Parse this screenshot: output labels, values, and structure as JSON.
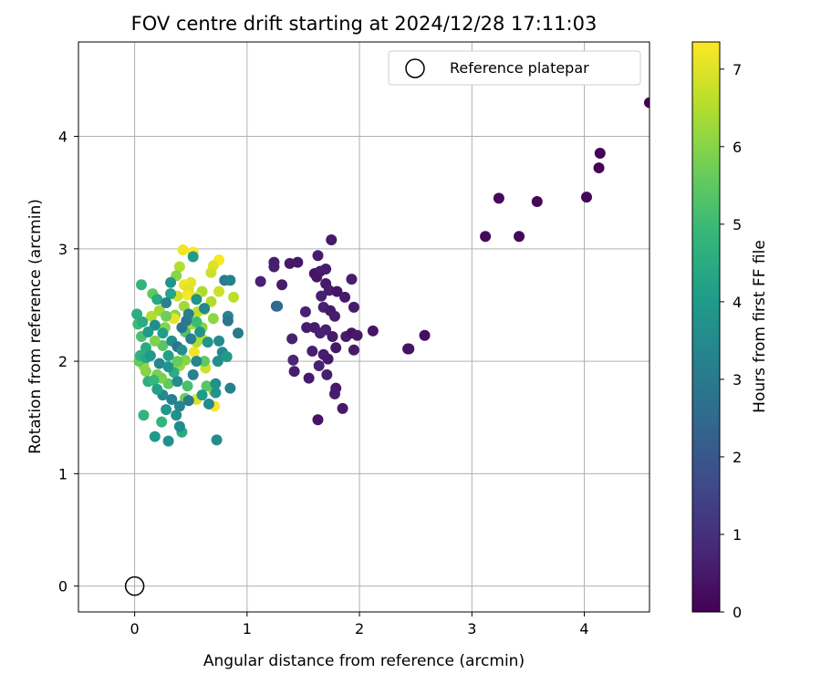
{
  "chart_data": {
    "type": "scatter",
    "title": "FOV centre drift starting at 2024/12/28 17:11:03",
    "xlabel": "Angular distance from reference (arcmin)",
    "ylabel": "Rotation from reference (arcmin)",
    "xlim": [
      -0.5,
      4.58
    ],
    "ylim": [
      -0.23,
      4.84
    ],
    "xticks": [
      0,
      1,
      2,
      3,
      4
    ],
    "yticks": [
      0,
      1,
      2,
      3,
      4
    ],
    "grid": true,
    "legend": {
      "placement": "top-right",
      "entries": [
        "Reference platepar"
      ]
    },
    "reference_point": {
      "name": "Reference platepar",
      "x": 0,
      "y": 0,
      "marker": "open-circle"
    },
    "colorbar": {
      "label": "Hours from first FF file",
      "range": [
        0,
        7.35
      ],
      "ticks": [
        0,
        1,
        2,
        3,
        4,
        5,
        6,
        7
      ],
      "colormap": "viridis"
    },
    "series": [
      {
        "points": [
          [
            4.58,
            4.3,
            0.0
          ],
          [
            4.14,
            3.85,
            0.05
          ],
          [
            4.13,
            3.72,
            0.08
          ],
          [
            4.02,
            3.46,
            0.1
          ],
          [
            3.58,
            3.42,
            0.12
          ],
          [
            3.24,
            3.45,
            0.15
          ],
          [
            3.12,
            3.11,
            0.18
          ],
          [
            3.42,
            3.11,
            0.16
          ],
          [
            2.58,
            2.23,
            0.3
          ],
          [
            2.43,
            2.11,
            0.35
          ],
          [
            2.44,
            2.11,
            0.36
          ],
          [
            2.12,
            2.27,
            0.4
          ],
          [
            1.75,
            3.08,
            0.5
          ],
          [
            1.63,
            2.94,
            0.55
          ],
          [
            1.24,
            2.88,
            0.6
          ],
          [
            1.24,
            2.84,
            0.62
          ],
          [
            1.38,
            2.87,
            0.5
          ],
          [
            1.45,
            2.88,
            0.45
          ],
          [
            1.12,
            2.71,
            0.7
          ],
          [
            1.31,
            2.68,
            0.6
          ],
          [
            1.6,
            2.78,
            0.4
          ],
          [
            1.65,
            2.8,
            0.5
          ],
          [
            1.7,
            2.82,
            0.55
          ],
          [
            1.62,
            2.75,
            0.45
          ],
          [
            1.7,
            2.69,
            0.5
          ],
          [
            1.73,
            2.63,
            0.6
          ],
          [
            1.66,
            2.58,
            0.65
          ],
          [
            1.8,
            2.62,
            0.4
          ],
          [
            1.87,
            2.57,
            0.5
          ],
          [
            1.93,
            2.73,
            0.6
          ],
          [
            1.68,
            2.48,
            0.7
          ],
          [
            1.74,
            2.45,
            0.5
          ],
          [
            1.78,
            2.4,
            0.6
          ],
          [
            1.95,
            2.48,
            0.55
          ],
          [
            1.52,
            2.44,
            0.7
          ],
          [
            1.6,
            2.3,
            0.6
          ],
          [
            1.7,
            2.28,
            0.65
          ],
          [
            1.53,
            2.3,
            0.55
          ],
          [
            1.65,
            2.25,
            0.7
          ],
          [
            1.76,
            2.22,
            0.5
          ],
          [
            1.88,
            2.22,
            0.6
          ],
          [
            1.93,
            2.25,
            0.4
          ],
          [
            1.98,
            2.23,
            0.5
          ],
          [
            1.4,
            2.2,
            0.7
          ],
          [
            1.58,
            2.09,
            0.65
          ],
          [
            1.79,
            2.12,
            0.45
          ],
          [
            1.95,
            2.1,
            0.55
          ],
          [
            1.68,
            2.06,
            0.6
          ],
          [
            1.72,
            2.02,
            0.5
          ],
          [
            1.41,
            2.01,
            0.8
          ],
          [
            1.64,
            1.96,
            0.7
          ],
          [
            1.42,
            1.91,
            0.6
          ],
          [
            1.55,
            1.85,
            0.5
          ],
          [
            1.71,
            1.88,
            0.6
          ],
          [
            1.79,
            1.76,
            0.5
          ],
          [
            1.78,
            1.71,
            0.6
          ],
          [
            1.85,
            1.58,
            0.5
          ],
          [
            1.63,
            1.48,
            0.4
          ],
          [
            1.26,
            2.49,
            2.0
          ],
          [
            1.27,
            2.49,
            2.5
          ],
          [
            0.52,
            2.97,
            7.3
          ],
          [
            0.43,
            2.99,
            7.2
          ],
          [
            0.75,
            2.9,
            7.3
          ],
          [
            0.7,
            2.85,
            7.0
          ],
          [
            0.4,
            2.84,
            6.5
          ],
          [
            0.68,
            2.79,
            6.8
          ],
          [
            0.37,
            2.76,
            6.0
          ],
          [
            0.5,
            2.7,
            7.1
          ],
          [
            0.44,
            2.68,
            7.2
          ],
          [
            0.48,
            2.64,
            7.0
          ],
          [
            0.6,
            2.62,
            6.4
          ],
          [
            0.75,
            2.62,
            6.8
          ],
          [
            0.47,
            2.59,
            7.3
          ],
          [
            0.55,
            2.57,
            7.0
          ],
          [
            0.38,
            2.58,
            6.8
          ],
          [
            0.68,
            2.53,
            6.5
          ],
          [
            0.88,
            2.57,
            6.6
          ],
          [
            0.44,
            2.49,
            6.3
          ],
          [
            0.62,
            2.46,
            6.2
          ],
          [
            0.56,
            2.44,
            6.6
          ],
          [
            0.36,
            2.41,
            6.0
          ],
          [
            0.7,
            2.38,
            6.1
          ],
          [
            0.51,
            2.33,
            6.4
          ],
          [
            0.35,
            2.38,
            7.1
          ],
          [
            0.27,
            2.3,
            6.0
          ],
          [
            0.22,
            2.45,
            6.3
          ],
          [
            0.15,
            2.4,
            6.5
          ],
          [
            0.6,
            2.3,
            6.0
          ],
          [
            0.6,
            2.2,
            6.7
          ],
          [
            0.55,
            2.17,
            6.5
          ],
          [
            0.53,
            2.08,
            7.2
          ],
          [
            0.45,
            2.01,
            6.0
          ],
          [
            0.63,
            1.94,
            6.8
          ],
          [
            0.4,
            1.96,
            6.2
          ],
          [
            0.7,
            1.74,
            6.7
          ],
          [
            0.55,
            1.66,
            7.0
          ],
          [
            0.71,
            1.6,
            7.3
          ],
          [
            0.08,
            1.96,
            6.2
          ],
          [
            0.1,
            1.91,
            6.0
          ],
          [
            0.2,
            1.88,
            5.8
          ],
          [
            0.04,
            2.0,
            5.6
          ],
          [
            0.06,
            2.22,
            5.2
          ],
          [
            0.03,
            2.33,
            5.0
          ],
          [
            0.16,
            2.6,
            5.5
          ],
          [
            0.28,
            2.4,
            5.7
          ],
          [
            0.25,
            2.14,
            5.4
          ],
          [
            0.18,
            2.18,
            5.9
          ],
          [
            0.45,
            2.26,
            5.3
          ],
          [
            0.38,
            2.0,
            5.6
          ],
          [
            0.3,
            1.8,
            5.5
          ],
          [
            0.24,
            1.85,
            5.8
          ],
          [
            0.47,
            1.78,
            5.2
          ],
          [
            0.45,
            1.67,
            5.7
          ],
          [
            0.64,
            1.78,
            5.4
          ],
          [
            0.55,
            2.35,
            5.0
          ],
          [
            0.62,
            2.0,
            5.5
          ],
          [
            0.08,
            1.52,
            4.8
          ],
          [
            0.06,
            2.68,
            4.8
          ],
          [
            0.07,
            2.35,
            4.5
          ],
          [
            0.02,
            2.42,
            4.6
          ],
          [
            0.1,
            2.12,
            4.5
          ],
          [
            0.05,
            2.05,
            4.7
          ],
          [
            0.12,
            1.82,
            4.6
          ],
          [
            0.17,
            1.83,
            4.9
          ],
          [
            0.1,
            2.03,
            4.4
          ],
          [
            0.3,
            2.05,
            4.2
          ],
          [
            0.35,
            1.9,
            4.6
          ],
          [
            0.2,
            2.55,
            4.4
          ],
          [
            0.32,
            2.6,
            4.3
          ],
          [
            0.32,
            2.7,
            3.8
          ],
          [
            0.52,
            2.93,
            4.0
          ],
          [
            0.24,
            1.46,
            4.8
          ],
          [
            0.42,
            1.37,
            4.5
          ],
          [
            0.18,
            1.33,
            4.0
          ],
          [
            0.3,
            1.29,
            3.7
          ],
          [
            0.4,
            1.42,
            3.5
          ],
          [
            0.73,
            1.3,
            3.6
          ],
          [
            0.8,
            2.72,
            3.0
          ],
          [
            0.85,
            2.72,
            3.2
          ],
          [
            0.83,
            2.4,
            3.4
          ],
          [
            0.83,
            2.36,
            2.9
          ],
          [
            0.92,
            2.25,
            3.0
          ],
          [
            0.75,
            2.18,
            3.5
          ],
          [
            0.65,
            2.17,
            3.8
          ],
          [
            0.78,
            2.08,
            3.5
          ],
          [
            0.82,
            2.04,
            4.0
          ],
          [
            0.74,
            2.0,
            3.6
          ],
          [
            0.72,
            1.8,
            3.7
          ],
          [
            0.85,
            1.76,
            3.2
          ],
          [
            0.72,
            1.72,
            3.8
          ],
          [
            0.6,
            1.7,
            4.0
          ],
          [
            0.66,
            1.62,
            3.5
          ],
          [
            0.4,
            1.6,
            3.3
          ],
          [
            0.37,
            1.52,
            3.7
          ],
          [
            0.28,
            1.57,
            3.9
          ],
          [
            0.33,
            1.66,
            3.2
          ],
          [
            0.25,
            1.7,
            3.5
          ],
          [
            0.48,
            1.65,
            3.0
          ],
          [
            0.22,
            1.98,
            3.4
          ],
          [
            0.33,
            2.18,
            3.6
          ],
          [
            0.42,
            2.3,
            2.9
          ],
          [
            0.48,
            2.42,
            3.2
          ],
          [
            0.55,
            2.55,
            3.8
          ],
          [
            0.62,
            2.47,
            3.4
          ],
          [
            0.28,
            2.52,
            3.3
          ],
          [
            0.18,
            2.32,
            3.6
          ],
          [
            0.38,
            2.13,
            2.8
          ],
          [
            0.52,
            1.88,
            3.3
          ],
          [
            0.42,
            2.1,
            3.7
          ],
          [
            0.5,
            2.2,
            3.1
          ],
          [
            0.25,
            2.25,
            4.1
          ],
          [
            0.14,
            2.05,
            3.9
          ],
          [
            0.12,
            2.26,
            4.0
          ],
          [
            0.58,
            2.26,
            3.8
          ],
          [
            0.2,
            1.75,
            4.2
          ],
          [
            0.38,
            1.82,
            3.6
          ],
          [
            0.55,
            2.0,
            3.4
          ],
          [
            0.46,
            2.36,
            3.0
          ],
          [
            0.3,
            1.95,
            3.8
          ]
        ]
      }
    ]
  }
}
